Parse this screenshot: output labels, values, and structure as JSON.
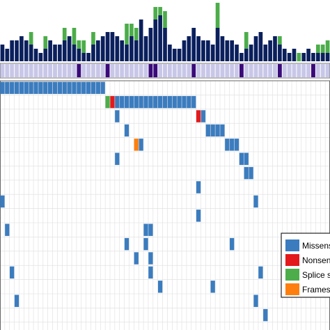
{
  "colors": {
    "burden_dark": "#0a1f5c",
    "burden_green": "#4cad4a",
    "track_fill": "#c9c7e8",
    "track_mark": "#3a0a7a",
    "grid_line": "#dedede",
    "missense": "#3b7cbf",
    "nonsense": "#e31a1c",
    "splice": "#4cad4a",
    "frameshift": "#ff7f0e"
  },
  "chart_data": {
    "type": "heatmap",
    "subtype": "oncoprint",
    "n_samples": 69,
    "n_genes": 18,
    "burden": {
      "dark": [
        4,
        3,
        5,
        5,
        6,
        5,
        4,
        3,
        2,
        3,
        5,
        4,
        4,
        5,
        6,
        4,
        3,
        2,
        2,
        4,
        5,
        6,
        7,
        7,
        6,
        5,
        4,
        6,
        5,
        10,
        6,
        8,
        10,
        11,
        8,
        4,
        3,
        3,
        5,
        6,
        8,
        6,
        5,
        5,
        4,
        8,
        6,
        5,
        5,
        4,
        2,
        3,
        4,
        6,
        7,
        4,
        5,
        6,
        4,
        3,
        2,
        3,
        0,
        2,
        3,
        2,
        2,
        2,
        2
      ],
      "green": [
        0,
        0,
        0,
        0,
        0,
        0,
        3,
        0,
        0,
        3,
        0,
        0,
        0,
        3,
        0,
        4,
        2,
        3,
        0,
        3,
        0,
        0,
        0,
        0,
        0,
        0,
        5,
        3,
        3,
        0,
        0,
        0,
        3,
        2,
        4,
        0,
        0,
        0,
        0,
        0,
        0,
        0,
        0,
        0,
        0,
        6,
        0,
        0,
        0,
        0,
        0,
        4,
        0,
        0,
        0,
        0,
        0,
        0,
        2,
        0,
        0,
        0,
        2,
        0,
        0,
        0,
        2,
        2,
        3
      ],
      "max": 14
    },
    "track_marks": [
      16,
      22,
      31,
      32,
      40,
      50,
      58,
      65
    ],
    "mutations": [
      {
        "gene": 0,
        "samples": [
          0,
          1,
          2,
          3,
          4,
          5,
          6,
          7,
          8,
          9,
          10,
          11,
          12,
          13,
          14,
          15,
          16,
          17,
          18,
          19,
          20,
          21
        ],
        "type": "missense"
      },
      {
        "gene": 1,
        "samples": [
          22
        ],
        "type": "splice"
      },
      {
        "gene": 1,
        "samples": [
          23
        ],
        "type": "nonsense"
      },
      {
        "gene": 1,
        "samples": [
          24,
          25,
          26,
          27,
          28,
          29,
          30,
          31,
          32,
          33,
          34,
          35,
          36,
          37,
          38,
          39,
          40
        ],
        "type": "missense"
      },
      {
        "gene": 2,
        "samples": [
          24,
          42
        ],
        "type": "missense"
      },
      {
        "gene": 2,
        "samples": [
          41
        ],
        "type": "nonsense"
      },
      {
        "gene": 3,
        "samples": [
          26,
          43,
          44,
          45,
          46
        ],
        "type": "missense"
      },
      {
        "gene": 4,
        "samples": [
          29
        ],
        "type": "missense"
      },
      {
        "gene": 4,
        "samples": [
          28
        ],
        "type": "frameshift"
      },
      {
        "gene": 4,
        "samples": [
          47,
          48,
          49
        ],
        "type": "missense"
      },
      {
        "gene": 5,
        "samples": [
          24,
          50,
          51
        ],
        "type": "missense"
      },
      {
        "gene": 6,
        "samples": [
          51,
          52
        ],
        "type": "missense"
      },
      {
        "gene": 7,
        "samples": [
          41
        ],
        "type": "missense"
      },
      {
        "gene": 8,
        "samples": [
          0,
          53
        ],
        "type": "missense"
      },
      {
        "gene": 9,
        "samples": [
          41
        ],
        "type": "missense"
      },
      {
        "gene": 10,
        "samples": [
          1,
          30,
          31
        ],
        "type": "missense"
      },
      {
        "gene": 11,
        "samples": [
          26,
          30,
          48
        ],
        "type": "missense"
      },
      {
        "gene": 12,
        "samples": [
          28,
          31
        ],
        "type": "missense"
      },
      {
        "gene": 13,
        "samples": [
          2,
          31,
          54
        ],
        "type": "missense"
      },
      {
        "gene": 14,
        "samples": [
          33,
          44
        ],
        "type": "missense"
      },
      {
        "gene": 15,
        "samples": [
          3,
          53
        ],
        "type": "missense"
      },
      {
        "gene": 16,
        "samples": [
          55
        ],
        "type": "missense"
      }
    ],
    "legend": {
      "position": "bottom-right",
      "items": [
        {
          "key": "missense",
          "label": "Missense"
        },
        {
          "key": "nonsense",
          "label": "Nonsense"
        },
        {
          "key": "splice",
          "label": "Splice site"
        },
        {
          "key": "frameshift",
          "label": "Frameshift"
        }
      ]
    }
  }
}
